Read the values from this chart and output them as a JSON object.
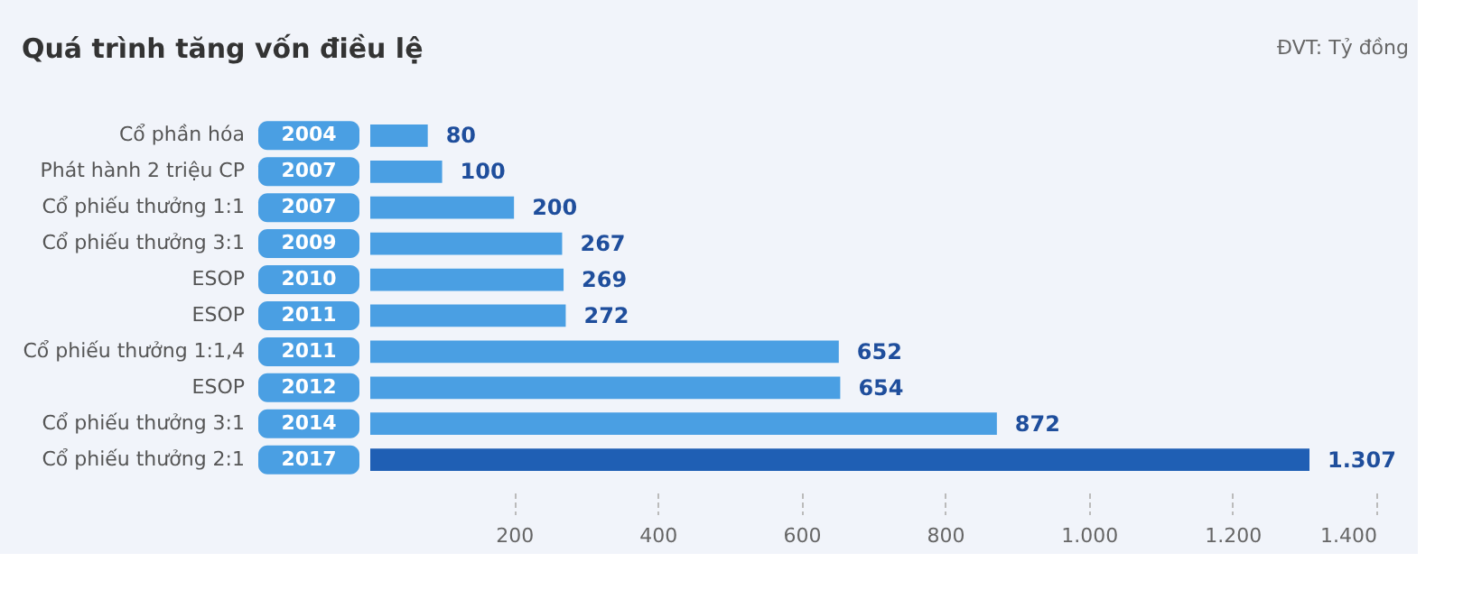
{
  "chart_data": {
    "type": "bar",
    "orientation": "horizontal",
    "title": "Quá trình tăng vốn điều lệ",
    "annotations": [
      "ĐVT: Tỷ đồng"
    ],
    "categories": [
      "Cổ phần hóa",
      "Phát hành 2 triệu CP",
      "Cổ phiếu thưởng 1:1",
      "Cổ phiếu thưởng 3:1",
      "ESOP",
      "ESOP",
      "Cổ phiếu thưởng 1:1,4",
      "ESOP",
      "Cổ phiếu thưởng 3:1",
      "Cổ phiếu thưởng 2:1"
    ],
    "y2_categories": [
      "2004",
      "2007",
      "2007",
      "2009",
      "2010",
      "2011",
      "2011",
      "2012",
      "2014",
      "2017"
    ],
    "values": [
      80,
      100,
      200,
      267,
      269,
      272,
      652,
      654,
      872,
      1307
    ],
    "value_labels": [
      "80",
      "100",
      "200",
      "267",
      "269",
      "272",
      "652",
      "654",
      "872",
      "1.307"
    ],
    "colors": [
      "#4a9fe3",
      "#4a9fe3",
      "#4a9fe3",
      "#4a9fe3",
      "#4a9fe3",
      "#4a9fe3",
      "#4a9fe3",
      "#4a9fe3",
      "#4a9fe3",
      "#1f5fb4"
    ],
    "xlim": [
      0,
      1400
    ],
    "xticks": [
      200,
      400,
      600,
      800,
      {
        "value": 1000,
        "label": "1.000"
      },
      {
        "value": 1200,
        "label": "1.200"
      },
      {
        "value": 1400,
        "label": "1.400"
      }
    ],
    "grid": false
  }
}
